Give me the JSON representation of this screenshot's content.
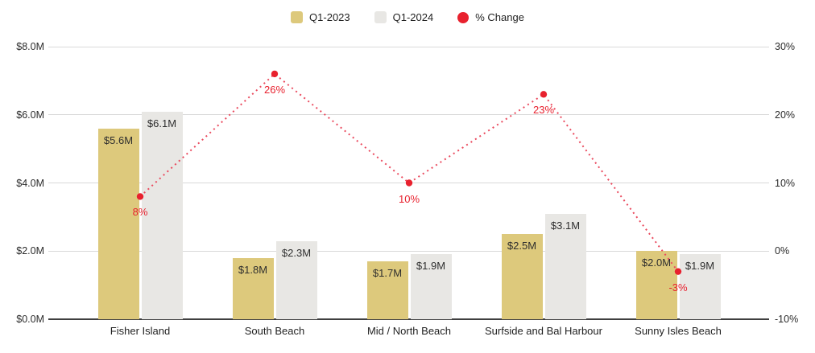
{
  "legend": {
    "items": [
      {
        "label": "Q1-2023",
        "marker": "square",
        "color": "#ddc97c"
      },
      {
        "label": "Q1-2024",
        "marker": "square",
        "color": "#e8e7e4"
      },
      {
        "label": "% Change",
        "marker": "circle",
        "color": "#e8212e"
      }
    ]
  },
  "chart_data": {
    "type": "bar",
    "subtype": "grouped-bars-with-line-overlay",
    "title": "",
    "categories": [
      "Fisher Island",
      "South Beach",
      "Mid / North Beach",
      "Surfside and Bal Harbour",
      "Sunny Isles Beach"
    ],
    "series": [
      {
        "name": "Q1-2023",
        "type": "bar",
        "axis": "left",
        "color": "#ddc97c",
        "values": [
          5.6,
          1.8,
          1.7,
          2.5,
          2.0
        ],
        "labels": [
          "$5.6M",
          "$1.8M",
          "$1.7M",
          "$2.5M",
          "$2.0M"
        ]
      },
      {
        "name": "Q1-2024",
        "type": "bar",
        "axis": "left",
        "color": "#e8e7e4",
        "values": [
          6.1,
          2.3,
          1.9,
          3.1,
          1.9
        ],
        "labels": [
          "$6.1M",
          "$2.3M",
          "$1.9M",
          "$3.1M",
          "$1.9M"
        ]
      },
      {
        "name": "% Change",
        "type": "line",
        "axis": "right",
        "line_style": "dotted",
        "color": "#e8212e",
        "values": [
          8,
          26,
          10,
          23,
          -3
        ],
        "labels": [
          "8%",
          "26%",
          "10%",
          "23%",
          "-3%"
        ]
      }
    ],
    "y_left": {
      "unit": "$M",
      "min": 0,
      "max": 8,
      "ticks": [
        "$8.0M",
        "$6.0M",
        "$4.0M",
        "$2.0M",
        "$0.0M"
      ]
    },
    "y_right": {
      "unit": "%",
      "min": -10,
      "max": 30,
      "ticks": [
        "30%",
        "20%",
        "10%",
        "0%",
        "-10%"
      ]
    },
    "grid": true,
    "legend_position": "top"
  },
  "colors": {
    "background": "#ffffff",
    "grid": "#d9d9d9",
    "axis_line": "#3f3f3f",
    "bar_label_text": "#2e2e2e",
    "pct_label_text": "#e8212e",
    "line_stroke": "#ea4a5e",
    "point_fill": "#e8212e"
  }
}
